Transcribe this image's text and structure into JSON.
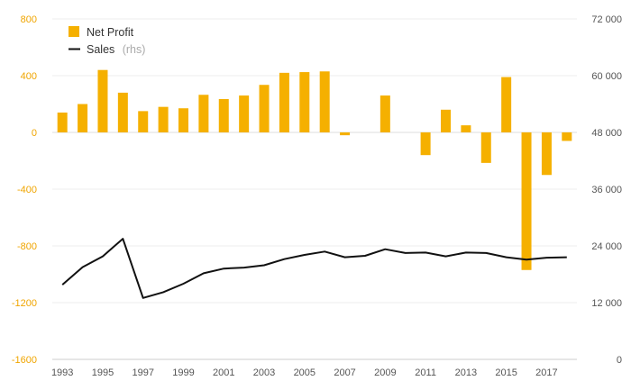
{
  "chart_data": {
    "type": "bar+line",
    "title": "",
    "x": [
      "1993",
      "1994",
      "1995",
      "1996",
      "1997",
      "1998",
      "1999",
      "2000",
      "2001",
      "2002",
      "2003",
      "2004",
      "2005",
      "2006",
      "2007",
      "2008",
      "2009",
      "2010",
      "2011",
      "2012",
      "2013",
      "2014",
      "2015",
      "2016",
      "2017",
      "2018"
    ],
    "x_tick_labels": [
      "1993",
      "1995",
      "1997",
      "1999",
      "2001",
      "2003",
      "2005",
      "2007",
      "2009",
      "2011",
      "2013",
      "2015",
      "2017"
    ],
    "left_axis": {
      "ylim": [
        -1600,
        800
      ],
      "ticks": [
        800,
        400,
        0,
        -400,
        -800,
        -1200,
        -1600
      ],
      "tick_labels": [
        "800",
        "400",
        "0",
        "-400",
        "-800",
        "-1200",
        "-1600"
      ]
    },
    "right_axis": {
      "ylim": [
        0,
        72000
      ],
      "ticks": [
        72000,
        60000,
        48000,
        36000,
        24000,
        12000,
        0
      ],
      "tick_labels": [
        "72 000",
        "60 000",
        "48 000",
        "36 000",
        "24 000",
        "12 000",
        "0"
      ]
    },
    "grid": true,
    "legend_position": "top-left",
    "series": [
      {
        "name": "Net Profit",
        "type": "bar",
        "axis": "left",
        "color": "#f5b000",
        "values": [
          140,
          200,
          440,
          280,
          150,
          180,
          170,
          265,
          235,
          260,
          335,
          420,
          425,
          430,
          -20,
          0,
          260,
          0,
          -160,
          160,
          50,
          -215,
          390,
          -970,
          -300,
          -60
        ]
      },
      {
        "name": "Sales",
        "name_suffix": "(rhs)",
        "type": "line",
        "axis": "right",
        "color": "#111111",
        "values": [
          15800,
          19500,
          21800,
          25500,
          13000,
          14200,
          16000,
          18200,
          19200,
          19400,
          19900,
          21200,
          22100,
          22800,
          21600,
          21900,
          23300,
          22500,
          22600,
          21800,
          22600,
          22500,
          21600,
          21100,
          21500,
          21600
        ]
      }
    ]
  },
  "legend": {
    "net_profit": "Net Profit",
    "sales": "Sales",
    "sales_suffix": "(rhs)"
  }
}
